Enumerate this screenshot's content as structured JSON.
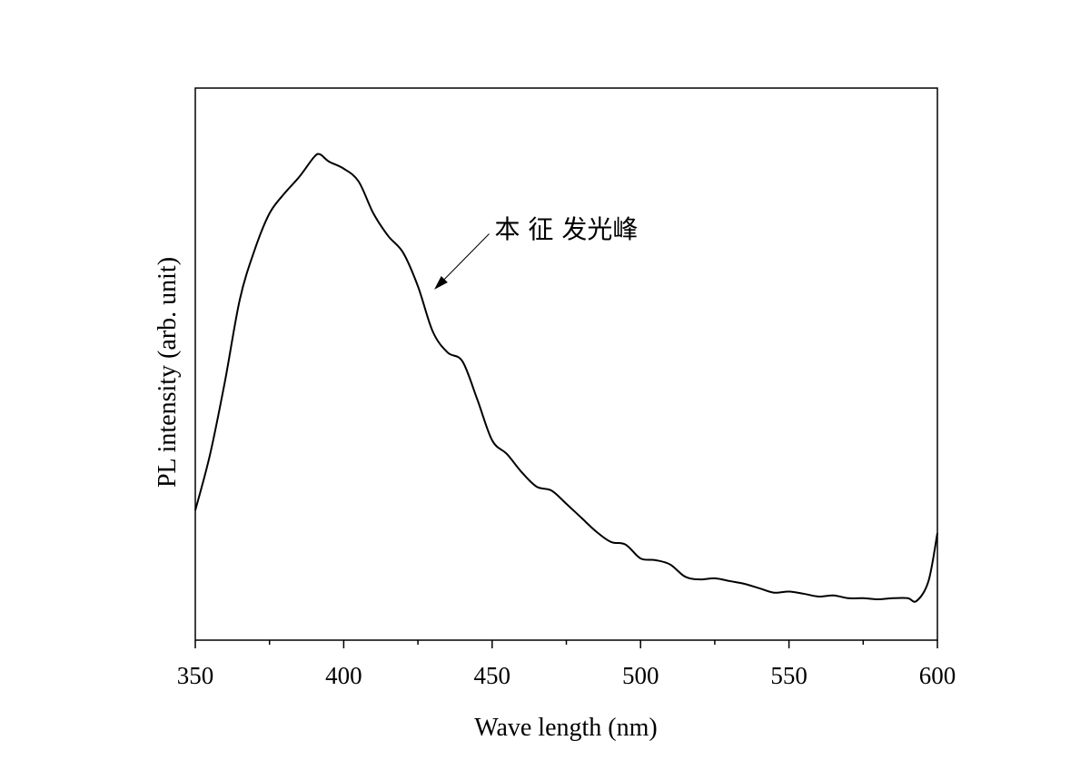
{
  "chart_data": {
    "type": "line",
    "title": "",
    "xlabel": "Wave length (nm)",
    "ylabel": "PL intensity (arb. unit)",
    "xlim": [
      350,
      600
    ],
    "ylim": [
      0,
      1
    ],
    "x_ticks": [
      350,
      400,
      450,
      500,
      550,
      600
    ],
    "x_minor_ticks": [
      375,
      425,
      475,
      525,
      575
    ],
    "y_ticks": [],
    "grid": false,
    "line_color": "#000000",
    "annotation": {
      "text": "本 征 发光峰",
      "arrow_to": [
        430.5,
        0.635
      ],
      "arrow_from": [
        449,
        0.736
      ],
      "text_at": [
        449,
        0.745
      ]
    },
    "series": [
      {
        "x": [
          350,
          355,
          360,
          365,
          370,
          375,
          380,
          385,
          390,
          392,
          395,
          400,
          405,
          410,
          415,
          420,
          425,
          430,
          435,
          440,
          445,
          450,
          455,
          460,
          465,
          470,
          475,
          480,
          485,
          490,
          495,
          500,
          505,
          510,
          515,
          520,
          525,
          530,
          535,
          540,
          545,
          550,
          555,
          560,
          565,
          570,
          575,
          580,
          585,
          590,
          593,
          597,
          600
        ],
        "y": [
          0.235,
          0.337,
          0.469,
          0.617,
          0.707,
          0.773,
          0.809,
          0.839,
          0.875,
          0.88,
          0.867,
          0.854,
          0.831,
          0.773,
          0.732,
          0.702,
          0.641,
          0.559,
          0.521,
          0.505,
          0.436,
          0.362,
          0.337,
          0.304,
          0.278,
          0.271,
          0.247,
          0.222,
          0.197,
          0.178,
          0.173,
          0.148,
          0.145,
          0.137,
          0.115,
          0.11,
          0.112,
          0.107,
          0.102,
          0.094,
          0.086,
          0.088,
          0.084,
          0.079,
          0.081,
          0.076,
          0.076,
          0.074,
          0.076,
          0.076,
          0.071,
          0.107,
          0.194
        ]
      }
    ]
  }
}
